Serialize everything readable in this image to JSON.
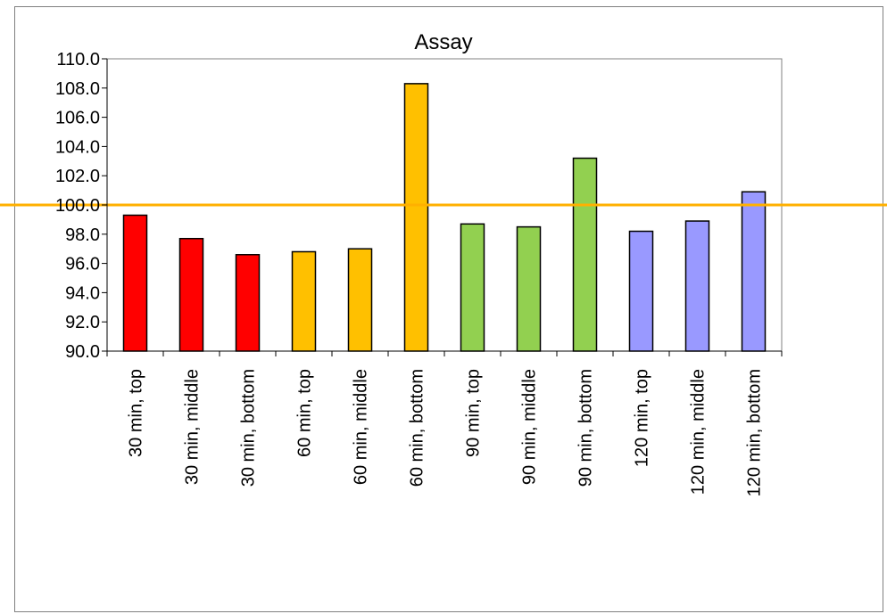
{
  "chart_data": {
    "type": "bar",
    "title": "Assay",
    "xlabel": "",
    "ylabel": "",
    "ylim": [
      90.0,
      110.0
    ],
    "yticks": [
      "90.0",
      "92.0",
      "94.0",
      "96.0",
      "98.0",
      "100.0",
      "102.0",
      "104.0",
      "106.0",
      "108.0",
      "110.0"
    ],
    "categories": [
      "30 min, top",
      "30 min, middle",
      "30 min, bottom",
      "60 min, top",
      "60 min, middle",
      "60 min, bottom",
      "90 min, top",
      "90 min, middle",
      "90 min, bottom",
      "120 min, top",
      "120 min, middle",
      "120 min, bottom"
    ],
    "values": [
      99.3,
      97.7,
      96.6,
      96.8,
      97.0,
      108.3,
      98.7,
      98.5,
      103.2,
      98.2,
      98.9,
      100.9
    ],
    "bar_colors": [
      "#ff0000",
      "#ff0000",
      "#ff0000",
      "#ffc000",
      "#ffc000",
      "#ffc000",
      "#92d050",
      "#92d050",
      "#92d050",
      "#9999ff",
      "#9999ff",
      "#9999ff"
    ],
    "reference_line": {
      "value": 100.0,
      "color": "#ffb000"
    },
    "grid": false,
    "legend": "none"
  }
}
